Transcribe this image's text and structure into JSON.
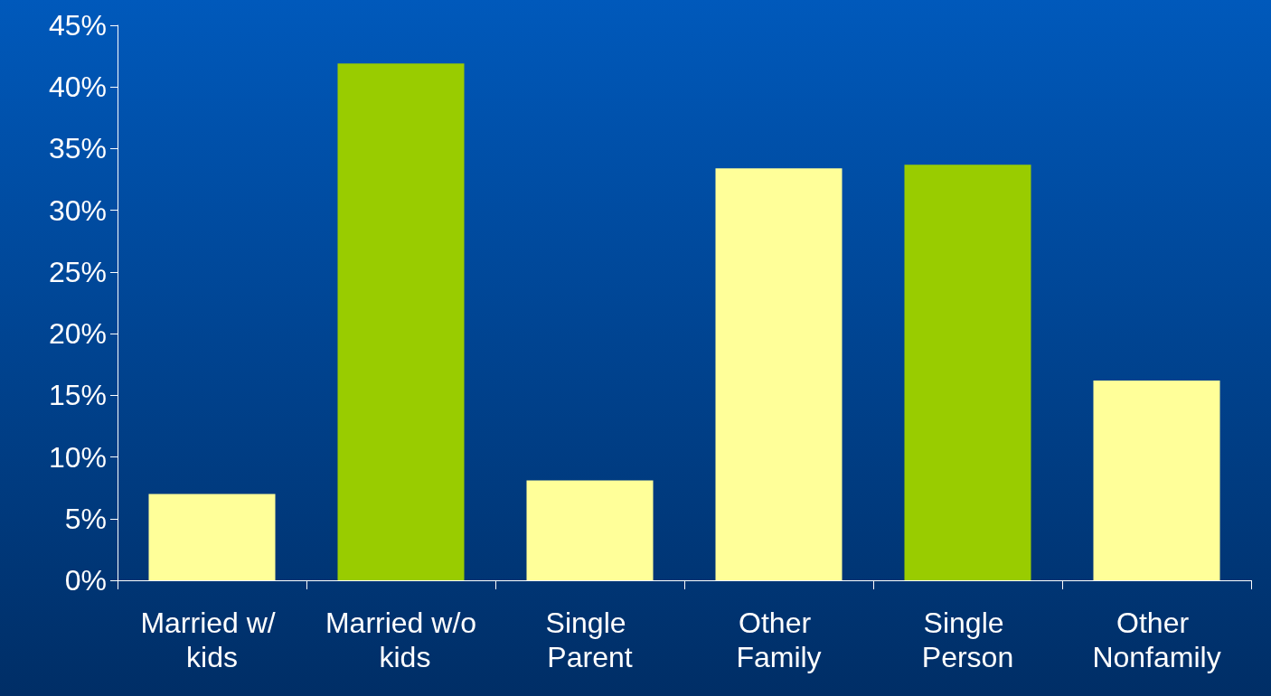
{
  "chart_data": {
    "type": "bar",
    "categories": [
      "Married w/ kids",
      "Married w/o kids",
      "Single Parent",
      "Other Family",
      "Single Person",
      "Other Nonfamily"
    ],
    "values": [
      7.0,
      41.9,
      8.1,
      33.4,
      33.7,
      16.2
    ],
    "colors": [
      "#ffff99",
      "#99cc00",
      "#ffff99",
      "#ffff99",
      "#99cc00",
      "#ffff99"
    ],
    "ylim": [
      0,
      45
    ],
    "yticks": [
      {
        "value": 0,
        "label": "0%"
      },
      {
        "value": 5,
        "label": "5%"
      },
      {
        "value": 10,
        "label": "10%"
      },
      {
        "value": 15,
        "label": "15%"
      },
      {
        "value": 20,
        "label": "20%"
      },
      {
        "value": 25,
        "label": "25%"
      },
      {
        "value": 30,
        "label": "30%"
      },
      {
        "value": 35,
        "label": "35%"
      },
      {
        "value": 40,
        "label": "40%"
      },
      {
        "value": 45,
        "label": "45%"
      }
    ],
    "grid": false
  }
}
